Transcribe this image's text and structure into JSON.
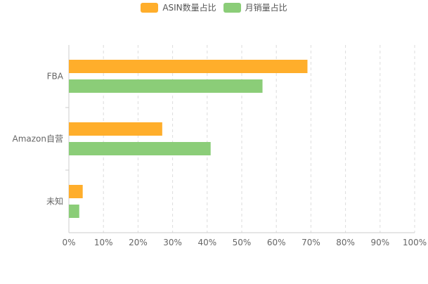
{
  "chart_data": {
    "type": "bar",
    "orientation": "horizontal",
    "categories": [
      "FBA",
      "Amazon自营",
      "未知"
    ],
    "series": [
      {
        "name": "ASIN数量占比",
        "color": "#FFAE2B",
        "values": [
          69,
          27,
          4
        ]
      },
      {
        "name": "月销量占比",
        "color": "#8BCD78",
        "values": [
          56,
          41,
          3
        ]
      }
    ],
    "xlim": [
      0,
      100
    ],
    "x_ticks": [
      "0%",
      "10%",
      "20%",
      "30%",
      "40%",
      "50%",
      "60%",
      "70%",
      "80%",
      "90%",
      "100%"
    ],
    "grid": "vertical dashed",
    "legend_position": "top-center"
  }
}
